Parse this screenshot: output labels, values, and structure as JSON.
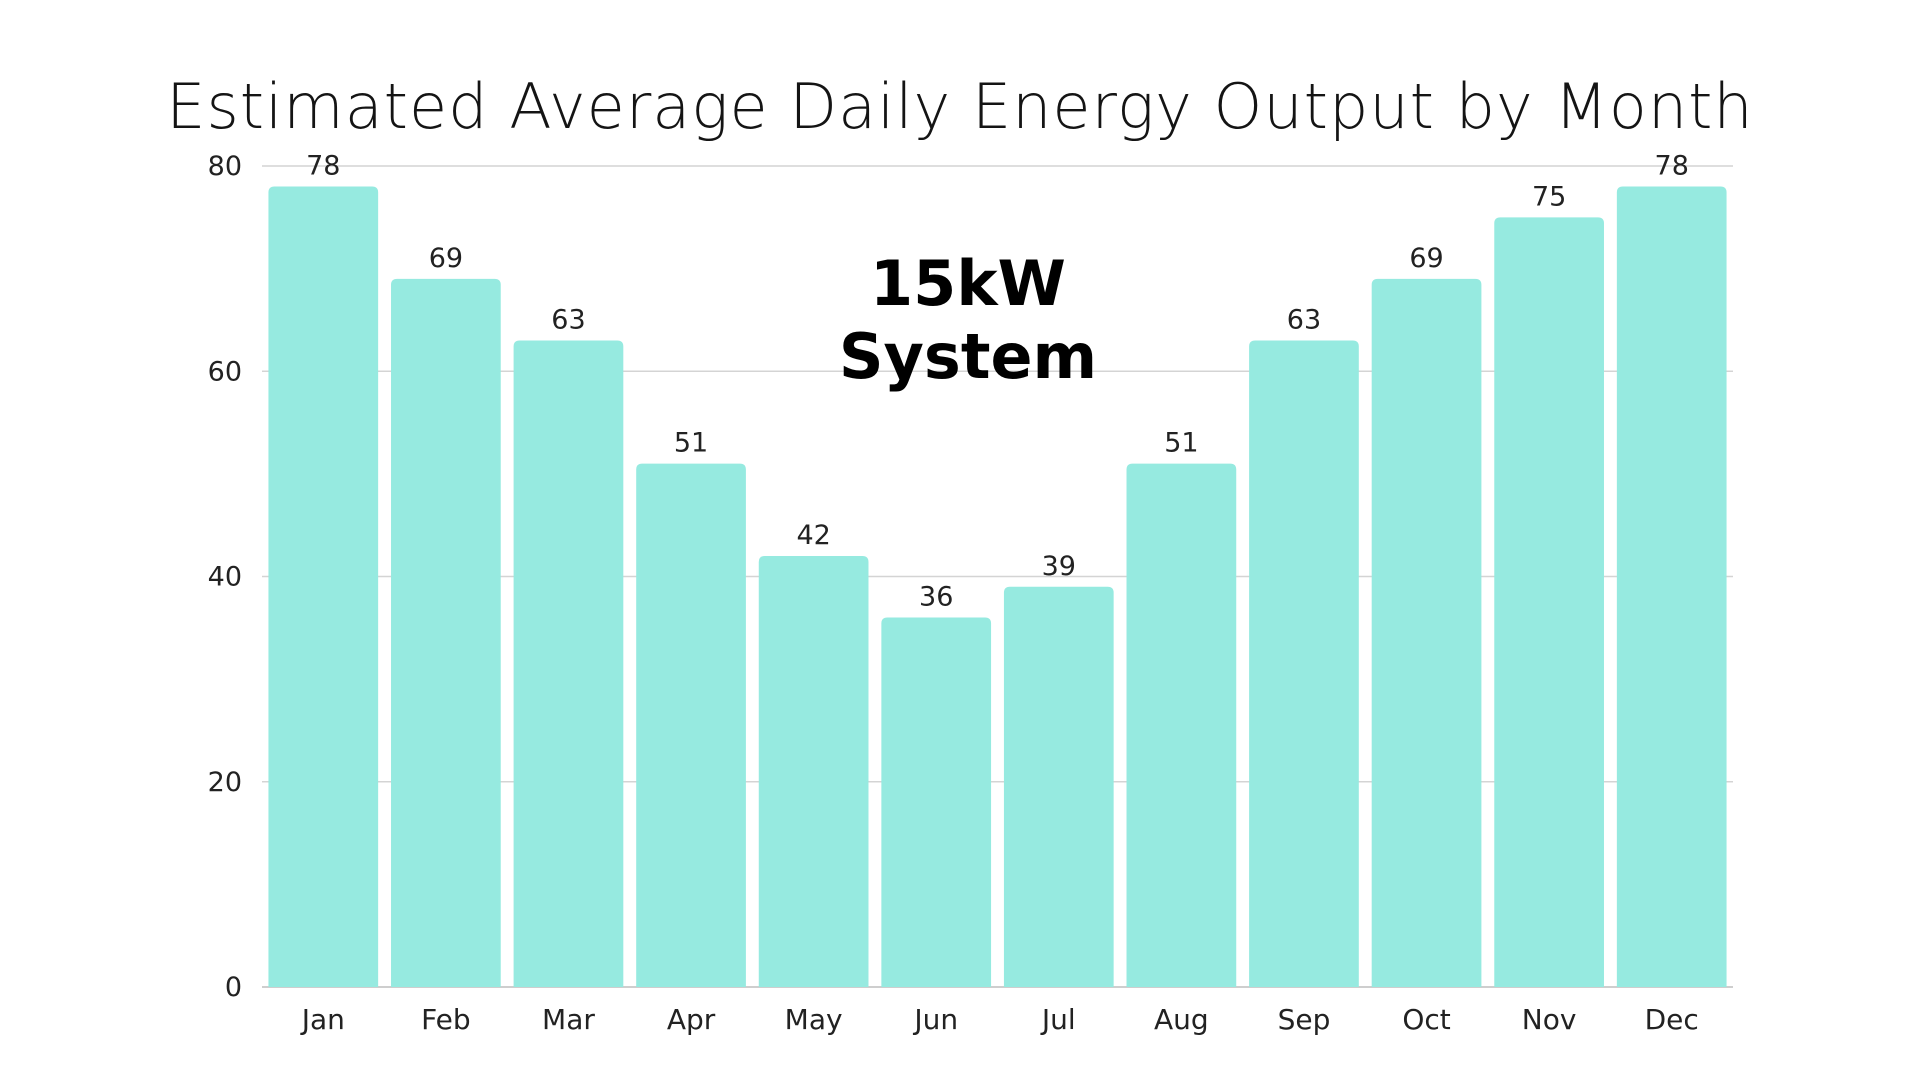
{
  "chart_data": {
    "type": "bar",
    "title": "Estimated Average Daily Energy Output by Month",
    "subtitle": "15kW System",
    "categories": [
      "Jan",
      "Feb",
      "Mar",
      "Apr",
      "May",
      "Jun",
      "Jul",
      "Aug",
      "Sep",
      "Oct",
      "Nov",
      "Dec"
    ],
    "values": [
      78,
      69,
      63,
      51,
      42,
      36,
      39,
      51,
      63,
      69,
      75,
      78
    ],
    "ylim": [
      0,
      80
    ],
    "yticks": [
      0,
      20,
      40,
      60,
      80
    ],
    "xlabel": "",
    "ylabel": "",
    "grid": true,
    "data_labels": true,
    "bar_color": "#96EAE0",
    "grid_color": "#d4d4d4"
  }
}
